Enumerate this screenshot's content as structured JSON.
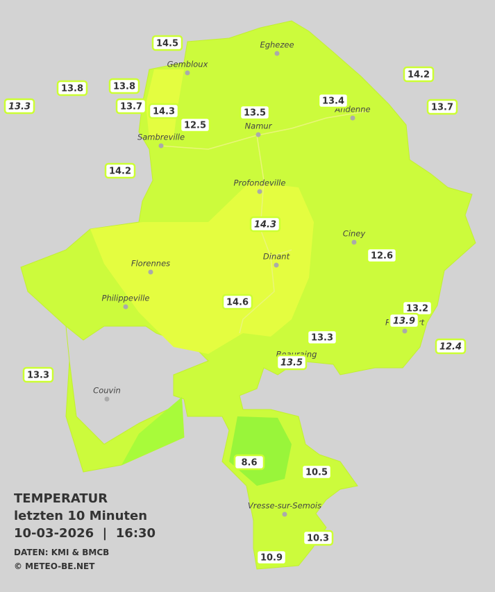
{
  "map": {
    "stations": [
      {
        "label": "14.5",
        "italic": false
      },
      {
        "label": "13.8",
        "italic": false
      },
      {
        "label": "13.8",
        "italic": false
      },
      {
        "label": "13.3",
        "italic": true
      },
      {
        "label": "13.7",
        "italic": false
      },
      {
        "label": "14.3",
        "italic": false
      },
      {
        "label": "12.5",
        "italic": false
      },
      {
        "label": "13.5",
        "italic": false
      },
      {
        "label": "13.4",
        "italic": false
      },
      {
        "label": "14.2",
        "italic": false
      },
      {
        "label": "13.7",
        "italic": false
      },
      {
        "label": "14.2",
        "italic": false
      },
      {
        "label": "14.3",
        "italic": true
      },
      {
        "label": "12.6",
        "italic": false
      },
      {
        "label": "14.6",
        "italic": false
      },
      {
        "label": "13.2",
        "italic": false
      },
      {
        "label": "13.9",
        "italic": true
      },
      {
        "label": "12.4",
        "italic": true
      },
      {
        "label": "13.3",
        "italic": false
      },
      {
        "label": "13.5",
        "italic": true
      },
      {
        "label": "13.3",
        "italic": false
      },
      {
        "label": "8.6",
        "italic": false
      },
      {
        "label": "10.5",
        "italic": false
      },
      {
        "label": "10.3",
        "italic": false
      },
      {
        "label": "10.9",
        "italic": false
      }
    ],
    "cities": [
      "Eghezee",
      "Gembloux",
      "Andenne",
      "Namur",
      "Sambreville",
      "Profondeville",
      "Ciney",
      "Dinant",
      "Florennes",
      "Philippeville",
      "Rochefort",
      "Beauraing",
      "Couvin",
      "Vresse-sur-Semois"
    ],
    "legend": {
      "title": "TEMPERATUR",
      "subtitle": "letzten 10 Minuten",
      "datetime": "10-03-2026  |  16:30",
      "source": "DATEN: KMI & BMCB",
      "copyright": "© METEO-BE.NET"
    }
  }
}
